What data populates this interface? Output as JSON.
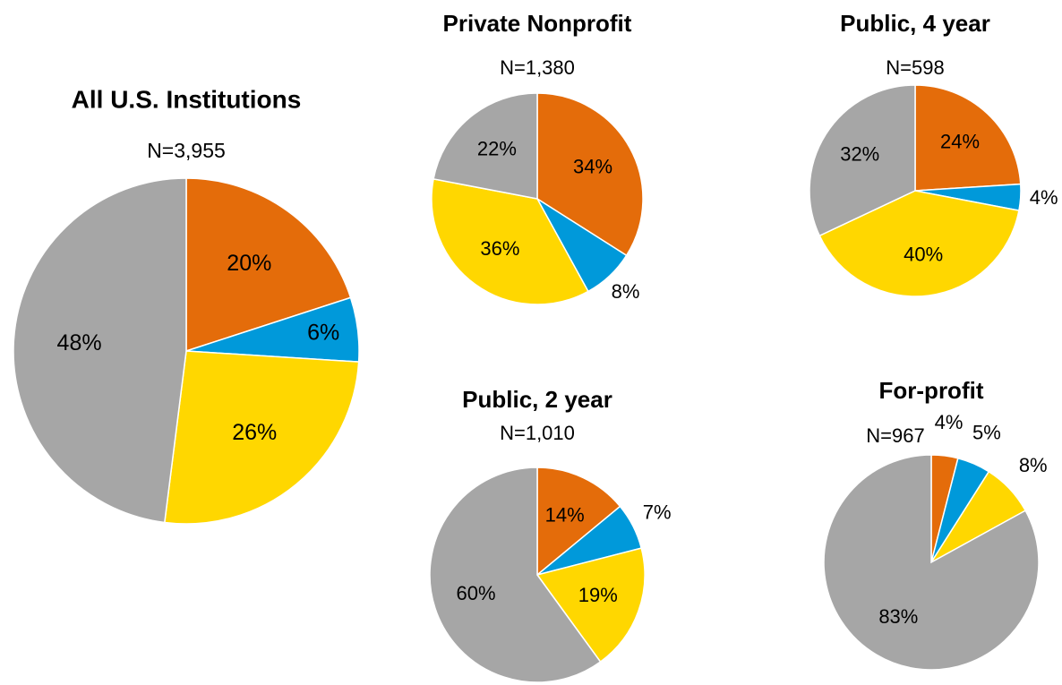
{
  "chart_data": [
    {
      "type": "pie",
      "title": "All U.S. Institutions",
      "subtitle": "N=3,955",
      "values": [
        20,
        6,
        26,
        48
      ],
      "value_labels": [
        "20%",
        "6%",
        "26%",
        "48%"
      ],
      "colors": [
        "#E46C0A",
        "#0099DA",
        "#FFD700",
        "#A6A6A6"
      ]
    },
    {
      "type": "pie",
      "title": "Private Nonprofit",
      "subtitle": "N=1,380",
      "values": [
        34,
        8,
        36,
        22
      ],
      "value_labels": [
        "34%",
        "8%",
        "36%",
        "22%"
      ],
      "colors": [
        "#E46C0A",
        "#0099DA",
        "#FFD700",
        "#A6A6A6"
      ]
    },
    {
      "type": "pie",
      "title": "Public, 4 year",
      "subtitle": "N=598",
      "values": [
        24,
        4,
        40,
        32
      ],
      "value_labels": [
        "24%",
        "4%",
        "40%",
        "32%"
      ],
      "colors": [
        "#E46C0A",
        "#0099DA",
        "#FFD700",
        "#A6A6A6"
      ]
    },
    {
      "type": "pie",
      "title": "Public, 2 year",
      "subtitle": "N=1,010",
      "values": [
        14,
        7,
        19,
        60
      ],
      "value_labels": [
        "14%",
        "7%",
        "19%",
        "60%"
      ],
      "colors": [
        "#E46C0A",
        "#0099DA",
        "#FFD700",
        "#A6A6A6"
      ]
    },
    {
      "type": "pie",
      "title": "For-profit",
      "subtitle": "N=967",
      "values": [
        4,
        5,
        8,
        83
      ],
      "value_labels": [
        "4%",
        "5%",
        "8%",
        "83%"
      ],
      "colors": [
        "#E46C0A",
        "#0099DA",
        "#FFD700",
        "#A6A6A6"
      ]
    }
  ]
}
